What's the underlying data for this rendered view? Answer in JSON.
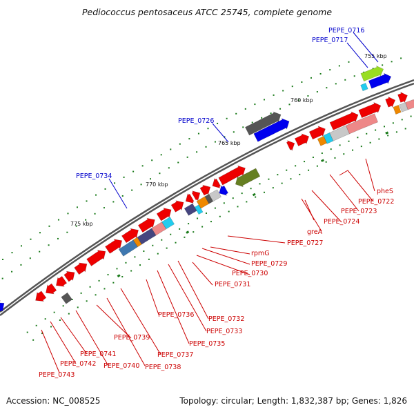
{
  "title": "Pediococcus pentosaceus ATCC 25745, complete genome",
  "accession": "Accession: NC_008525",
  "summary": "Topology: circular; Length: 1,832,387 bp; Genes: 1,826",
  "ticks": [
    "755 kbp",
    "760 kbp",
    "765 kbp",
    "770 kbp",
    "775 kbp"
  ],
  "labels": {
    "top": [
      "PEPE_0716",
      "PEPE_0717",
      "PEPE_0726",
      "PEPE_0734"
    ],
    "bottom": [
      "pheS",
      "PEPE_0722",
      "PEPE_0723",
      "PEPE_0724",
      "greA",
      "PEPE_0727",
      "rpmG",
      "PEPE_0729",
      "PEPE_0730",
      "PEPE_0731",
      "PEPE_0732",
      "PEPE_0733",
      "PEPE_0735",
      "PEPE_0736",
      "PEPE_0737",
      "PEPE_0738",
      "PEPE_0739",
      "PEPE_0740",
      "PEPE_0741",
      "PEPE_0742",
      "PEPE_0743"
    ]
  },
  "colors": {
    "backbone": "#555555",
    "dots": "#1a7a1a",
    "label_red": "#cc0000",
    "label_blue": "#0000cc",
    "gene_red": "#ee0000",
    "gene_blue": "#0000ee",
    "gene_pink": "#ee8888",
    "gene_gray": "#c8c8c8",
    "gene_dark_gray": "#555555",
    "gene_orange": "#ee8800",
    "gene_cyan": "#22ccee",
    "gene_olive": "#667f22",
    "gene_lime": "#99dd22",
    "gene_steel": "#3f78b0",
    "gene_slate": "#45457f"
  }
}
